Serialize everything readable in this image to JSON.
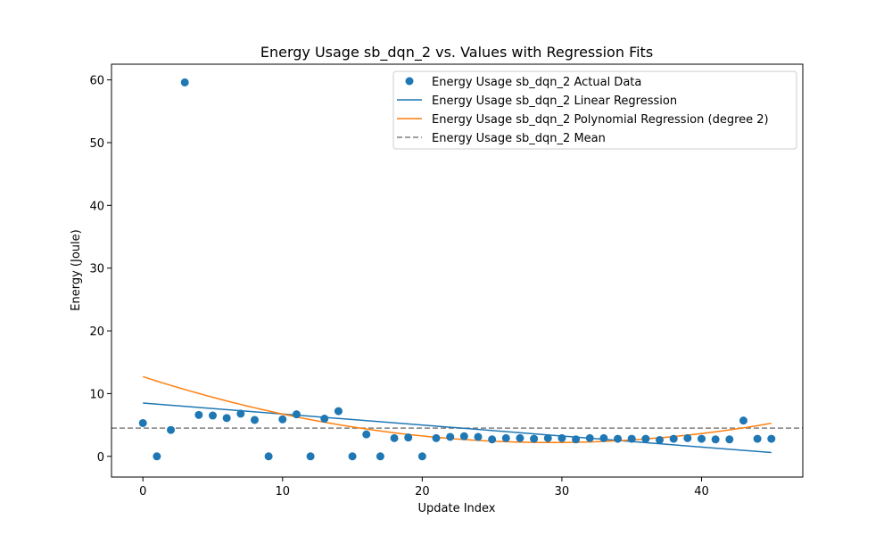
{
  "chart_data": {
    "type": "scatter",
    "title": "Energy Usage sb_dqn_2 vs. Values with Regression Fits",
    "xlabel": "Update Index",
    "ylabel": "Energy (Joule)",
    "xlim": [
      -2.25,
      47.25
    ],
    "ylim": [
      -3.3,
      62.5
    ],
    "xticks": [
      0,
      10,
      20,
      30,
      40
    ],
    "yticks": [
      0,
      10,
      20,
      30,
      40,
      50,
      60
    ],
    "grid": false,
    "legend_position": "top-right",
    "series": [
      {
        "name": "Energy Usage sb_dqn_2 Actual Data",
        "kind": "scatter",
        "color": "#1f77b4",
        "x": [
          0,
          1,
          2,
          3,
          4,
          5,
          6,
          7,
          8,
          9,
          10,
          11,
          12,
          13,
          14,
          15,
          16,
          17,
          18,
          19,
          20,
          21,
          22,
          23,
          24,
          25,
          26,
          27,
          28,
          29,
          30,
          31,
          32,
          33,
          34,
          35,
          36,
          37,
          38,
          39,
          40,
          41,
          42,
          43,
          44,
          45
        ],
        "y": [
          5.3,
          0.0,
          4.2,
          59.6,
          6.6,
          6.5,
          6.1,
          6.8,
          5.8,
          0.0,
          5.9,
          6.7,
          0.0,
          6.0,
          7.2,
          0.0,
          3.5,
          0.0,
          2.9,
          3.0,
          0.0,
          2.9,
          3.1,
          3.2,
          3.1,
          2.7,
          2.9,
          2.9,
          2.8,
          2.9,
          2.9,
          2.7,
          2.9,
          2.9,
          2.8,
          2.8,
          2.8,
          2.6,
          2.8,
          2.9,
          2.8,
          2.7,
          2.7,
          5.7,
          2.8,
          2.8
        ]
      },
      {
        "name": "Energy Usage sb_dqn_2 Linear Regression",
        "kind": "line",
        "color": "#1f77b4",
        "dash": "solid",
        "x": [
          0,
          45
        ],
        "y": [
          8.5,
          0.6
        ]
      },
      {
        "name": "Energy Usage sb_dqn_2 Polynomial Regression (degree 2)",
        "kind": "line",
        "color": "#ff7f0e",
        "dash": "solid",
        "coefficients": {
          "a": 0.0123,
          "b": -0.7186,
          "c": 12.7
        },
        "x_range": [
          0,
          45
        ]
      },
      {
        "name": "Energy Usage sb_dqn_2 Mean",
        "kind": "hline",
        "color": "#7f7f7f",
        "dash": "dashed",
        "y": 4.5
      }
    ]
  }
}
